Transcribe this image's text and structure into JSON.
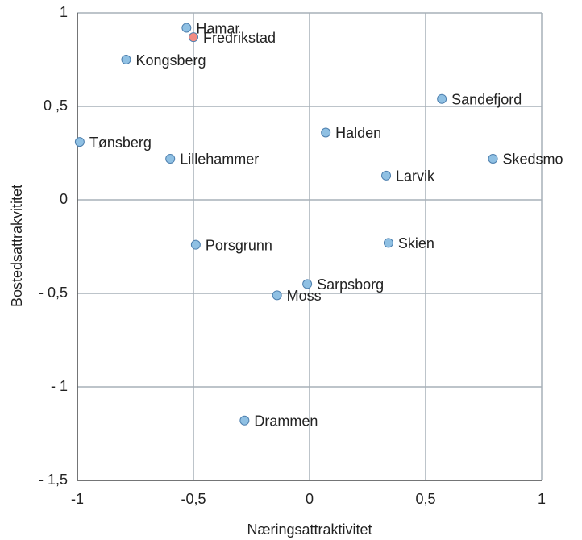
{
  "chart_data": {
    "type": "scatter",
    "xlabel": "Næringsattraktivitet",
    "ylabel": "Bostedsattrakvititet",
    "labels": [
      "Hamar",
      "Fredrikstad",
      "Kongsberg",
      "Sandefjord",
      "Tønsberg",
      "Halden",
      "Skedsmo",
      "Lillehammer",
      "Larvik",
      "Porsgrunn",
      "Skien",
      "Sarpsborg",
      "Moss",
      "Drammen"
    ],
    "x": [
      -0.53,
      -0.5,
      -0.79,
      0.57,
      -0.99,
      0.07,
      0.79,
      -0.6,
      0.33,
      -0.49,
      0.34,
      -0.01,
      -0.14,
      -0.28
    ],
    "values": [
      0.92,
      0.87,
      0.75,
      0.54,
      0.31,
      0.36,
      0.22,
      0.22,
      0.13,
      -0.24,
      -0.23,
      -0.45,
      -0.51,
      -1.18
    ],
    "colors": [
      "#8fc0e3",
      "#f28b82",
      "#8fc0e3",
      "#8fc0e3",
      "#8fc0e3",
      "#8fc0e3",
      "#8fc0e3",
      "#8fc0e3",
      "#8fc0e3",
      "#8fc0e3",
      "#8fc0e3",
      "#8fc0e3",
      "#8fc0e3",
      "#8fc0e3"
    ],
    "xlim": [
      -1,
      1
    ],
    "ylim": [
      -1.5,
      1
    ],
    "xticks": [
      -1,
      {
        "value": -0.5,
        "label": "-0,5"
      },
      0,
      {
        "value": 0.5,
        "label": "0,5"
      },
      1
    ],
    "yticks": [
      {
        "value": -1.5,
        "label": "- 1,5"
      },
      {
        "value": -1,
        "label": "- 1"
      },
      {
        "value": -0.5,
        "label": "- 0,5"
      },
      0,
      {
        "value": 0.5,
        "label": "0 ,5"
      },
      1
    ],
    "grid": true
  }
}
